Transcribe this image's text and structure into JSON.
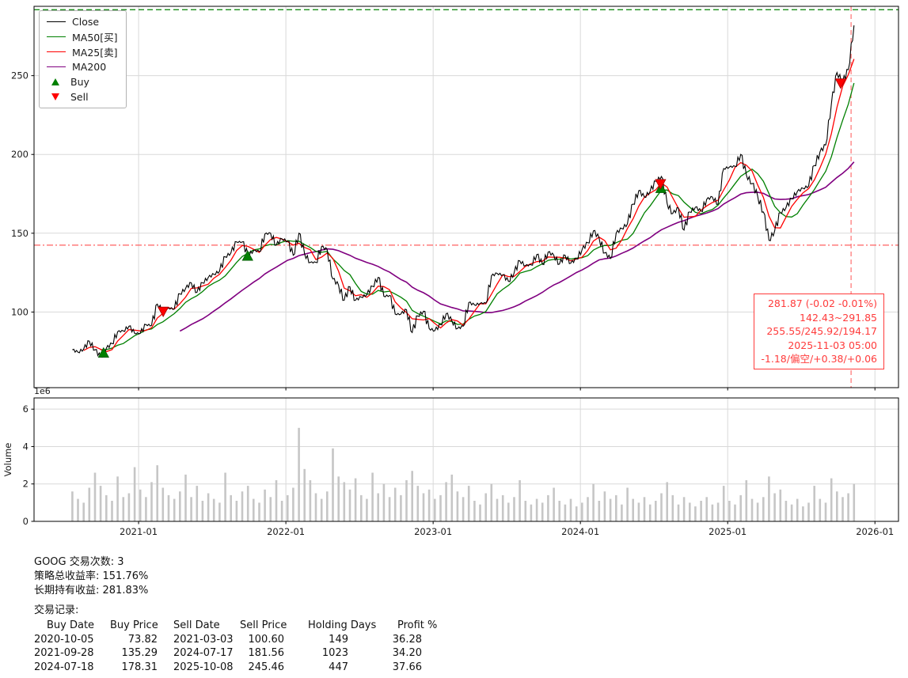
{
  "figure": {
    "background": "#ffffff"
  },
  "legend": {
    "items": [
      {
        "label": "Close",
        "color": "#000000",
        "type": "line"
      },
      {
        "label": "MA50[买]",
        "color": "#008000",
        "type": "line"
      },
      {
        "label": "MA25[卖]",
        "color": "#ff0000",
        "type": "line"
      },
      {
        "label": "MA200",
        "color": "#800080",
        "type": "line"
      },
      {
        "label": "Buy",
        "color": "#008000",
        "type": "triangle-up"
      },
      {
        "label": "Sell",
        "color": "#ff0000",
        "type": "triangle-down"
      }
    ]
  },
  "annotation": {
    "color": "#ff3b3b",
    "lines": [
      "281.87 (-0.02 -0.01%)",
      "142.43~291.85",
      "255.55/245.92/194.17",
      "2025-11-03 05:00",
      "-1.18/偏空/+0.38/+0.06"
    ]
  },
  "chart_data": {
    "type": "line",
    "title": "",
    "x_start": 2020.55,
    "x_step": 0.038462,
    "xlim": [
      2020.29,
      2026.16
    ],
    "xticks": [
      {
        "t": 2021.0,
        "label": "2021-01"
      },
      {
        "t": 2022.0,
        "label": "2022-01"
      },
      {
        "t": 2023.0,
        "label": "2023-01"
      },
      {
        "t": 2024.0,
        "label": "2024-01"
      },
      {
        "t": 2025.0,
        "label": "2025-01"
      },
      {
        "t": 2026.0,
        "label": "2026-01"
      }
    ],
    "price_axis": {
      "ylim": [
        52,
        294
      ],
      "yticks": [
        100,
        150,
        200,
        250
      ]
    },
    "volume_axis": {
      "ylim": [
        0,
        6.6
      ],
      "yticks": [
        0,
        2,
        4,
        6
      ],
      "offset_label": "1e6",
      "ylabel": "Volume"
    },
    "series": [
      {
        "name": "Close",
        "color": "#000000",
        "values": [
          76,
          74.5,
          76.5,
          81.5,
          76,
          71.5,
          77,
          80,
          87.5,
          88,
          91,
          86.5,
          86.5,
          92,
          91.5,
          105,
          101,
          102.5,
          102,
          111.5,
          115,
          118.5,
          112.5,
          118.5,
          122,
          124,
          126,
          135,
          137.5,
          144.5,
          144.5,
          136,
          139,
          138.5,
          149.5,
          150,
          142.5,
          146.5,
          144.9,
          136,
          150,
          137,
          131.5,
          131.5,
          141.5,
          139.5,
          121,
          117,
          107.5,
          116,
          107.5,
          109.5,
          111,
          116.3,
          122,
          110,
          110.5,
          98.7,
          98.7,
          101.5,
          87,
          97.5,
          100.5,
          89.5,
          88.2,
          92,
          99,
          94.5,
          89.5,
          91,
          106,
          104.5,
          105.5,
          105.6,
          123,
          124.5,
          123.5,
          119.5,
          125,
          132.5,
          129.5,
          129.9,
          136.5,
          130.3,
          138,
          136,
          130.4,
          136,
          131,
          133.8,
          139.6,
          144,
          151.5,
          147,
          137.5,
          134,
          150,
          153,
          156,
          168.5,
          177,
          173,
          176.5,
          183,
          186,
          169,
          162.5,
          166,
          152,
          163.5,
          166.5,
          164,
          171.5,
          173,
          168.5,
          191,
          192,
          192.5,
          200,
          187,
          181.5,
          173.5,
          163.5,
          145.5,
          151.5,
          163,
          166.2,
          172,
          176.5,
          178.5,
          180,
          193,
          201.5,
          206,
          232,
          252,
          246,
          253.8,
          281.9
        ]
      },
      {
        "name": "MA25[卖]",
        "color": "#ff0000",
        "derived": "ma",
        "window_samples": 3
      },
      {
        "name": "MA50[买]",
        "color": "#008000",
        "derived": "ma",
        "window_samples": 6
      },
      {
        "name": "MA200",
        "color": "#800080",
        "derived": "ma",
        "window_samples": 20
      }
    ],
    "volume": {
      "color": "#c6c6c6",
      "values": [
        1.6,
        1.2,
        1.0,
        1.8,
        2.6,
        1.9,
        1.4,
        1.1,
        2.4,
        1.3,
        1.5,
        2.9,
        1.7,
        1.3,
        2.1,
        3.0,
        1.8,
        1.4,
        1.2,
        1.6,
        2.5,
        1.3,
        1.9,
        1.1,
        1.5,
        1.2,
        1.0,
        2.6,
        1.4,
        1.1,
        1.6,
        1.9,
        1.2,
        1.0,
        1.7,
        1.3,
        2.2,
        1.1,
        1.4,
        1.8,
        5.0,
        2.8,
        2.2,
        1.5,
        1.2,
        1.6,
        3.9,
        2.4,
        2.1,
        1.7,
        2.3,
        1.4,
        1.2,
        2.6,
        1.5,
        2.0,
        1.3,
        1.8,
        1.4,
        2.2,
        2.7,
        1.9,
        1.5,
        1.7,
        1.2,
        1.4,
        2.1,
        2.5,
        1.6,
        1.3,
        1.9,
        1.1,
        0.9,
        1.5,
        2.0,
        1.2,
        1.4,
        1.0,
        1.3,
        2.2,
        1.1,
        0.9,
        1.2,
        1.0,
        1.4,
        1.8,
        1.1,
        0.9,
        1.2,
        0.8,
        1.0,
        1.3,
        2.0,
        1.1,
        1.6,
        1.2,
        1.4,
        0.9,
        1.8,
        1.2,
        1.0,
        1.3,
        0.9,
        1.1,
        1.5,
        2.1,
        1.4,
        0.9,
        1.3,
        1.0,
        0.8,
        1.1,
        1.3,
        0.9,
        1.0,
        1.9,
        1.1,
        0.9,
        1.4,
        2.2,
        1.2,
        1.0,
        1.3,
        2.4,
        1.5,
        1.7,
        1.1,
        0.9,
        1.2,
        0.8,
        1.0,
        1.9,
        1.2,
        1.0,
        2.3,
        1.6,
        1.3,
        1.5,
        2.0
      ]
    },
    "hlines": [
      {
        "y": 291.85,
        "color": "#008000",
        "style": "dashed"
      },
      {
        "y": 142.43,
        "color": "#ff6060",
        "style": "dashdot"
      }
    ],
    "vlines": [
      {
        "t": 2025.838,
        "color": "#ff7070",
        "style": "dashed"
      }
    ],
    "markers": {
      "buys": [
        {
          "date": "2020-10-05",
          "t": 2020.762,
          "price": 73.82
        },
        {
          "date": "2021-09-28",
          "t": 2021.74,
          "price": 135.29
        },
        {
          "date": "2024-07-18",
          "t": 2024.547,
          "price": 178.31
        }
      ],
      "sells": [
        {
          "date": "2021-03-03",
          "t": 2021.167,
          "price": 100.6
        },
        {
          "date": "2024-07-17",
          "t": 2024.544,
          "price": 181.56
        },
        {
          "date": "2025-10-08",
          "t": 2025.767,
          "price": 245.46
        }
      ]
    }
  },
  "report": {
    "line1": "GOOG 交易次数: 3",
    "line2": "策略总收益率: 151.76%",
    "line3": "长期持有收益: 281.83%",
    "line4": "交易记录:",
    "table": {
      "header": [
        "Buy Date",
        "Buy Price",
        "Sell Date",
        "Sell Price",
        "Holding Days",
        "Profit %"
      ],
      "rows": [
        [
          "2020-10-05",
          "73.82",
          "2021-03-03",
          "100.60",
          "149",
          "36.28"
        ],
        [
          "2021-09-28",
          "135.29",
          "2024-07-17",
          "181.56",
          "1023",
          "34.20"
        ],
        [
          "2024-07-18",
          "178.31",
          "2025-10-08",
          "245.46",
          "447",
          "37.66"
        ]
      ]
    }
  }
}
